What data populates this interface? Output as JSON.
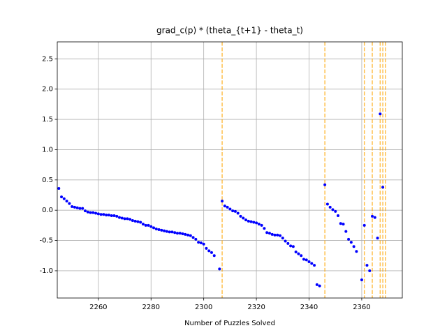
{
  "chart_data": {
    "type": "scatter",
    "title": "grad_c(p) * (theta_{t+1} - theta_t)",
    "x_label": "Number of Puzzles Solved",
    "xlim": [
      2244.4,
      2375.4
    ],
    "ylim": [
      -1.45,
      2.78
    ],
    "xticks": [
      2260,
      2280,
      2300,
      2320,
      2340,
      2360
    ],
    "yticks": [
      {
        "value": -1.0,
        "label": "-1.0"
      },
      -0.5,
      {
        "value": 0.0,
        "label": "0.0"
      },
      0.5,
      {
        "value": 1.0,
        "label": "1.0"
      },
      1.5,
      {
        "value": 2.0,
        "label": "2.0"
      },
      2.5
    ],
    "grid": true,
    "vlines": [
      2307,
      2346,
      2361,
      2364,
      2367,
      2368,
      2369
    ],
    "vline_color": "#ffa500",
    "series": [
      {
        "color": "#0000ff",
        "x": [
          2245,
          2246,
          2247,
          2248,
          2249,
          2250,
          2251,
          2252,
          2253,
          2254,
          2255,
          2256,
          2257,
          2258,
          2259,
          2260,
          2261,
          2262,
          2263,
          2264,
          2265,
          2266,
          2267,
          2268,
          2269,
          2270,
          2271,
          2272,
          2273,
          2274,
          2275,
          2276,
          2277,
          2278,
          2279,
          2280,
          2281,
          2282,
          2283,
          2284,
          2285,
          2286,
          2287,
          2288,
          2289,
          2290,
          2291,
          2292,
          2293,
          2294,
          2295,
          2296,
          2297,
          2298,
          2299,
          2300,
          2301,
          2302,
          2303,
          2304,
          2306,
          2307,
          2308,
          2309,
          2310,
          2311,
          2312,
          2313,
          2314,
          2315,
          2316,
          2317,
          2318,
          2319,
          2320,
          2321,
          2322,
          2323,
          2324,
          2325,
          2326,
          2327,
          2328,
          2329,
          2330,
          2331,
          2332,
          2333,
          2334,
          2335,
          2336,
          2337,
          2338,
          2339,
          2340,
          2341,
          2342,
          2343,
          2344,
          2346,
          2347,
          2348,
          2349,
          2350,
          2351,
          2352,
          2353,
          2354,
          2355,
          2356,
          2357,
          2358,
          2360,
          2361,
          2362,
          2363,
          2364,
          2365,
          2366,
          2367,
          2368
        ],
        "values": [
          0.36,
          0.22,
          0.19,
          0.15,
          0.11,
          0.06,
          0.05,
          0.04,
          0.03,
          0.03,
          -0.01,
          -0.03,
          -0.04,
          -0.04,
          -0.05,
          -0.06,
          -0.07,
          -0.07,
          -0.08,
          -0.08,
          -0.09,
          -0.09,
          -0.1,
          -0.12,
          -0.13,
          -0.14,
          -0.14,
          -0.15,
          -0.17,
          -0.18,
          -0.19,
          -0.2,
          -0.23,
          -0.25,
          -0.25,
          -0.27,
          -0.29,
          -0.31,
          -0.32,
          -0.33,
          -0.34,
          -0.35,
          -0.36,
          -0.36,
          -0.37,
          -0.38,
          -0.38,
          -0.39,
          -0.4,
          -0.41,
          -0.42,
          -0.45,
          -0.48,
          -0.53,
          -0.54,
          -0.56,
          -0.63,
          -0.67,
          -0.7,
          -0.75,
          -0.97,
          0.15,
          0.07,
          0.05,
          0.02,
          -0.01,
          -0.02,
          -0.05,
          -0.1,
          -0.13,
          -0.16,
          -0.18,
          -0.19,
          -0.2,
          -0.21,
          -0.23,
          -0.25,
          -0.3,
          -0.37,
          -0.38,
          -0.4,
          -0.41,
          -0.41,
          -0.42,
          -0.46,
          -0.51,
          -0.55,
          -0.59,
          -0.6,
          -0.69,
          -0.72,
          -0.75,
          -0.81,
          -0.82,
          -0.85,
          -0.88,
          -0.91,
          -1.23,
          -1.25,
          0.42,
          0.1,
          0.05,
          0.01,
          -0.02,
          -0.09,
          -0.22,
          -0.23,
          -0.35,
          -0.48,
          -0.53,
          -0.6,
          -0.68,
          -1.15,
          -0.25,
          -0.91,
          -1.0,
          -0.1,
          -0.12,
          -0.46,
          1.59,
          0.38
        ]
      }
    ]
  }
}
